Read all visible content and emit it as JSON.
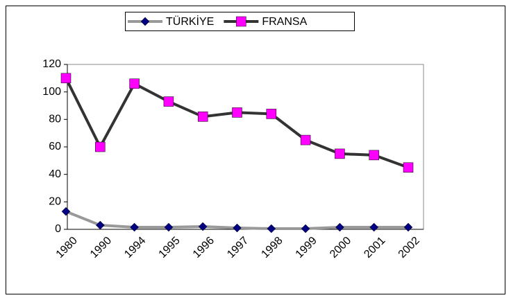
{
  "chart_data": {
    "type": "line",
    "categories": [
      "1980",
      "1990",
      "1994",
      "1995",
      "1996",
      "1997",
      "1998",
      "1999",
      "2000",
      "2001",
      "2002"
    ],
    "series": [
      {
        "name": "TÜRKİYE",
        "color": "#999999",
        "marker_color": "#000080",
        "marker": "diamond",
        "values": [
          13,
          3,
          1.5,
          1.5,
          2,
          1,
          0.5,
          0.5,
          1.5,
          1.5,
          1.5
        ]
      },
      {
        "name": "FRANSA",
        "color": "#333333",
        "marker_color": "#ff00ff",
        "marker": "square",
        "values": [
          110,
          60,
          106,
          93,
          82,
          85,
          84,
          65,
          55,
          54,
          45
        ]
      }
    ],
    "ylim": [
      0,
      120
    ],
    "yticks": [
      0,
      20,
      40,
      60,
      80,
      100,
      120
    ],
    "grid": false,
    "legend": "top"
  }
}
